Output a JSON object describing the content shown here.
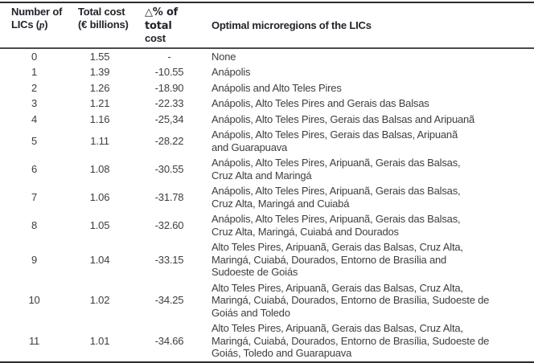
{
  "table": {
    "title_semantic": "Optimal microregions of the LICs cost table",
    "header": {
      "col1_line1": "Number of",
      "col1_line2_pre": "LICs (",
      "col1_var": "p",
      "col1_line2_post": ")",
      "col2_line1": "Total cost",
      "col2_line2": "(€ billions)",
      "col3_line1": "△% of total",
      "col3_line2": "cost",
      "col4": "Optimal microregions of the LICs"
    },
    "rows": [
      {
        "p": "0",
        "cost": "1.55",
        "delta": "-",
        "regions": "None"
      },
      {
        "p": "1",
        "cost": "1.39",
        "delta": "-10.55",
        "regions": "Anápolis"
      },
      {
        "p": "2",
        "cost": "1.26",
        "delta": "-18.90",
        "regions": "Anápolis and Alto Teles Pires"
      },
      {
        "p": "3",
        "cost": "1.21",
        "delta": "-22.33",
        "regions": "Anápolis, Alto Teles Pires and Gerais das Balsas"
      },
      {
        "p": "4",
        "cost": "1.16",
        "delta": "-25,34",
        "regions": "Anápolis, Alto Teles Pires, Gerais das Balsas and Aripuanã"
      },
      {
        "p": "5",
        "cost": "1.11",
        "delta": "-28.22",
        "regions": "Anápolis, Alto Teles Pires, Gerais das Balsas, Aripuanã\nand Guarapuava"
      },
      {
        "p": "6",
        "cost": "1.08",
        "delta": "-30.55",
        "regions": "Anápolis, Alto Teles Pires, Aripuanã, Gerais das Balsas,\nCruz Alta and Maringá"
      },
      {
        "p": "7",
        "cost": "1.06",
        "delta": "-31.78",
        "regions": "Anápolis, Alto Teles Pires, Aripuanã, Gerais das Balsas,\nCruz Alta, Maringá and Cuiabá"
      },
      {
        "p": "8",
        "cost": "1.05",
        "delta": "-32.60",
        "regions": "Anápolis, Alto Teles Pires, Aripuanã, Gerais das Balsas,\nCruz Alta, Maringá, Cuiabá and Dourados"
      },
      {
        "p": "9",
        "cost": "1.04",
        "delta": "-33.15",
        "regions": "Alto Teles Pires, Aripuanã, Gerais das Balsas, Cruz Alta,\nMaringá, Cuiabá, Dourados, Entorno de Brasília and\nSudoeste de Goiás"
      },
      {
        "p": "10",
        "cost": "1.02",
        "delta": "-34.25",
        "regions": "Alto Teles Pires, Aripuanã, Gerais das Balsas, Cruz Alta,\nMaringá, Cuiabá, Dourados, Entorno de Brasília, Sudoeste de\nGoiás and Toledo"
      },
      {
        "p": "11",
        "cost": "1.01",
        "delta": "-34.66",
        "regions": "Alto Teles Pires, Aripuanã, Gerais das Balsas, Cruz Alta,\nMaringá, Cuiabá, Dourados, Entorno de Brasília, Sudoeste de\nGoiás, Toledo and Guarapuava"
      }
    ]
  }
}
